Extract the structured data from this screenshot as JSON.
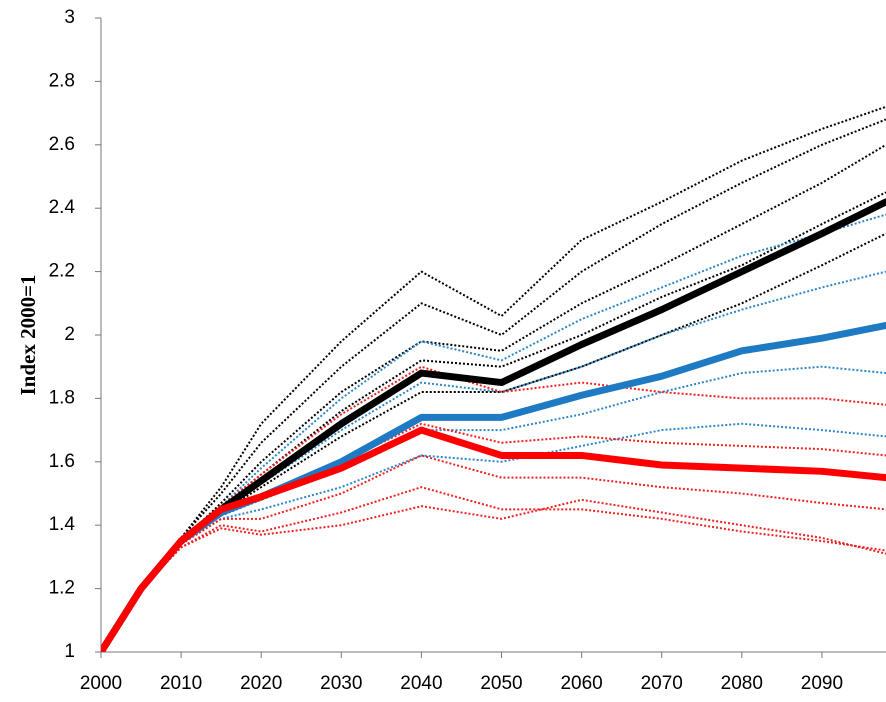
{
  "chart_data": {
    "type": "line",
    "y_label": "Index 2000=1",
    "x": [
      2000,
      2005,
      2010,
      2015,
      2020,
      2030,
      2040,
      2050,
      2060,
      2070,
      2080,
      2090,
      2098
    ],
    "xlim": [
      2000,
      2098
    ],
    "xticks": [
      2000,
      2010,
      2020,
      2030,
      2040,
      2050,
      2060,
      2070,
      2080,
      2090
    ],
    "ylim": [
      1,
      3
    ],
    "yticks": [
      1,
      1.2,
      1.4,
      1.6,
      1.8,
      2,
      2.2,
      2.4,
      2.6,
      2.8,
      3
    ],
    "grid": false,
    "series": [
      {
        "color": "#000000",
        "style": "dotted",
        "values": [
          1,
          1.2,
          1.36,
          1.52,
          1.72,
          1.98,
          2.2,
          2.06,
          2.3,
          2.42,
          2.55,
          2.65,
          2.72
        ]
      },
      {
        "color": "#000000",
        "style": "dotted",
        "values": [
          1,
          1.2,
          1.36,
          1.5,
          1.66,
          1.9,
          2.1,
          2.0,
          2.2,
          2.35,
          2.48,
          2.6,
          2.68
        ]
      },
      {
        "color": "#000000",
        "style": "dotted",
        "values": [
          1,
          1.2,
          1.35,
          1.47,
          1.6,
          1.82,
          1.98,
          1.95,
          2.1,
          2.22,
          2.35,
          2.48,
          2.6
        ]
      },
      {
        "color": "#000000",
        "style": "dotted",
        "values": [
          1,
          1.2,
          1.35,
          1.46,
          1.56,
          1.76,
          1.92,
          1.9,
          2.0,
          2.12,
          2.22,
          2.35,
          2.45
        ]
      },
      {
        "color": "#000000",
        "style": "dotted",
        "values": [
          1,
          1.2,
          1.34,
          1.44,
          1.52,
          1.68,
          1.82,
          1.82,
          1.9,
          2.0,
          2.1,
          2.22,
          2.32
        ]
      },
      {
        "color": "#2e86c8",
        "style": "dotted",
        "values": [
          1,
          1.2,
          1.35,
          1.46,
          1.58,
          1.8,
          1.98,
          1.92,
          2.05,
          2.15,
          2.25,
          2.32,
          2.38
        ]
      },
      {
        "color": "#2e86c8",
        "style": "dotted",
        "values": [
          1,
          1.2,
          1.35,
          1.45,
          1.53,
          1.7,
          1.85,
          1.82,
          1.9,
          2.0,
          2.08,
          2.15,
          2.2
        ]
      },
      {
        "color": "#2e86c8",
        "style": "dotted",
        "values": [
          1,
          1.2,
          1.34,
          1.43,
          1.48,
          1.58,
          1.7,
          1.7,
          1.75,
          1.82,
          1.88,
          1.9,
          1.88
        ]
      },
      {
        "color": "#2e86c8",
        "style": "dotted",
        "values": [
          1,
          1.2,
          1.34,
          1.42,
          1.45,
          1.52,
          1.62,
          1.6,
          1.65,
          1.7,
          1.72,
          1.7,
          1.68
        ]
      },
      {
        "color": "#ee2020",
        "style": "dotted",
        "values": [
          1,
          1.2,
          1.35,
          1.46,
          1.56,
          1.75,
          1.9,
          1.82,
          1.85,
          1.82,
          1.8,
          1.8,
          1.78
        ]
      },
      {
        "color": "#ee2020",
        "style": "dotted",
        "values": [
          1,
          1.2,
          1.35,
          1.44,
          1.48,
          1.6,
          1.72,
          1.66,
          1.68,
          1.66,
          1.65,
          1.64,
          1.62
        ]
      },
      {
        "color": "#ee2020",
        "style": "dotted",
        "values": [
          1,
          1.2,
          1.34,
          1.42,
          1.42,
          1.5,
          1.62,
          1.55,
          1.55,
          1.52,
          1.5,
          1.47,
          1.45
        ]
      },
      {
        "color": "#ee2020",
        "style": "dotted",
        "values": [
          1,
          1.2,
          1.33,
          1.4,
          1.38,
          1.44,
          1.52,
          1.45,
          1.45,
          1.42,
          1.38,
          1.35,
          1.32
        ]
      },
      {
        "color": "#ee2020",
        "style": "dotted",
        "values": [
          1,
          1.2,
          1.33,
          1.39,
          1.37,
          1.4,
          1.46,
          1.42,
          1.48,
          1.44,
          1.4,
          1.36,
          1.31
        ]
      },
      {
        "color": "#000000",
        "style": "solid",
        "values": [
          1,
          1.2,
          1.35,
          1.45,
          1.54,
          1.72,
          1.88,
          1.85,
          1.97,
          2.08,
          2.2,
          2.32,
          2.42
        ]
      },
      {
        "color": "#1f7ac4",
        "style": "solid",
        "values": [
          1,
          1.2,
          1.35,
          1.44,
          1.49,
          1.6,
          1.74,
          1.74,
          1.81,
          1.87,
          1.95,
          1.99,
          2.03
        ]
      },
      {
        "color": "#ff0000",
        "style": "solid",
        "values": [
          1,
          1.2,
          1.35,
          1.45,
          1.49,
          1.58,
          1.7,
          1.62,
          1.62,
          1.59,
          1.58,
          1.57,
          1.55
        ]
      }
    ]
  }
}
